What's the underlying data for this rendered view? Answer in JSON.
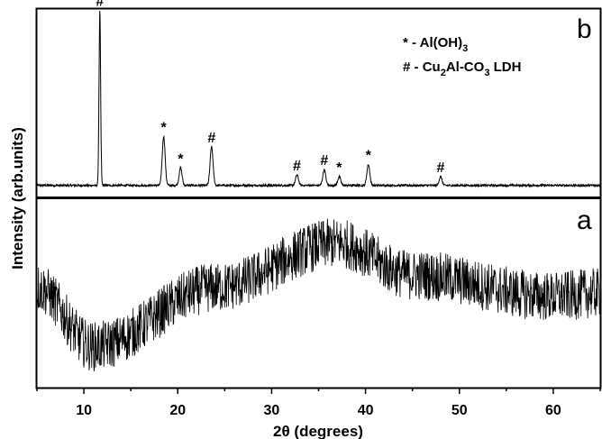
{
  "chart_data": {
    "type": "line",
    "xlabel": "2θ (degrees)",
    "ylabel": "Intensity (arb.units)",
    "xlim": [
      5,
      65
    ],
    "x_ticks": [
      10,
      20,
      30,
      40,
      50,
      60
    ],
    "y_ticks": "none",
    "grid": false,
    "panels": [
      {
        "label": "b",
        "position": "top",
        "baseline": 0.08,
        "peaks": [
          {
            "x": 11.7,
            "height": 1.0,
            "marker": "#"
          },
          {
            "x": 18.5,
            "height": 0.28,
            "marker": "*"
          },
          {
            "x": 20.3,
            "height": 0.1,
            "marker": "*"
          },
          {
            "x": 23.6,
            "height": 0.22,
            "marker": "#"
          },
          {
            "x": 32.7,
            "height": 0.06,
            "marker": "#"
          },
          {
            "x": 35.6,
            "height": 0.09,
            "marker": "#"
          },
          {
            "x": 37.2,
            "height": 0.05,
            "marker": "*"
          },
          {
            "x": 40.3,
            "height": 0.12,
            "marker": "*"
          },
          {
            "x": 48.0,
            "height": 0.05,
            "marker": "#"
          }
        ],
        "legend": {
          "position": "top-right",
          "entries": [
            {
              "symbol": "*",
              "sep": " - ",
              "text": "Al(OH)",
              "sub": "3",
              "tail": ""
            },
            {
              "symbol": "#",
              "sep": " - ",
              "text": "Cu",
              "sub": "2",
              "mid": "Al-CO",
              "sub2": "3",
              "tail": " LDH"
            }
          ]
        }
      },
      {
        "label": "a",
        "position": "bottom",
        "note": "amorphous broad humps",
        "humps": [
          {
            "x": 11,
            "level": 0.22
          },
          {
            "x": 24,
            "level": 0.55
          },
          {
            "x": 37,
            "level": 0.8
          },
          {
            "x": 45,
            "level": 0.62
          },
          {
            "x": 60,
            "level": 0.5
          },
          {
            "x": 65,
            "level": 0.52
          }
        ],
        "start_level": 0.55
      }
    ]
  }
}
